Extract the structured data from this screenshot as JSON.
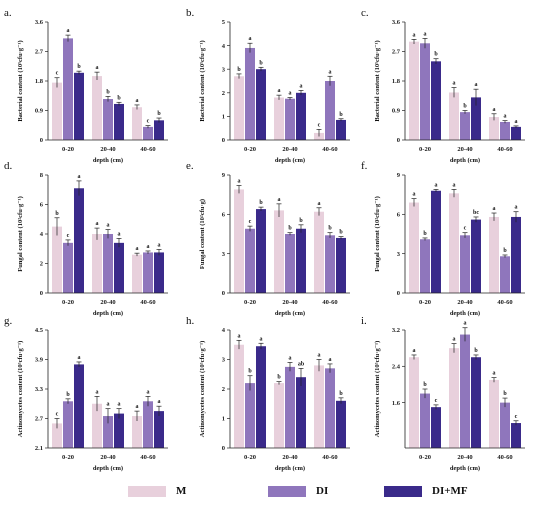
{
  "colors": {
    "M": "#e8d0dc",
    "DI": "#8f76bc",
    "DI+MF": "#3a2a8a"
  },
  "legend": [
    {
      "key": "M",
      "label": "M"
    },
    {
      "key": "DI",
      "label": "DI"
    },
    {
      "key": "DI+MF",
      "label": "DI+MF"
    }
  ],
  "chart_data": [
    {
      "panel": "a.",
      "type": "bar",
      "categories": [
        "0-20",
        "20-40",
        "40-60"
      ],
      "xlabel": "depth (cm)",
      "ylabel": "Bacterial content (10⁵cfu·g⁻¹)",
      "ylim": [
        0,
        3.6
      ],
      "yticks": [
        0,
        0.9,
        1.8,
        2.7,
        3.6
      ],
      "series": [
        {
          "name": "M",
          "values": [
            1.75,
            1.95,
            1.0
          ],
          "err": [
            0.15,
            0.12,
            0.07
          ],
          "sig": [
            "c",
            "a",
            "a"
          ]
        },
        {
          "name": "DI",
          "values": [
            3.1,
            1.25,
            0.4
          ],
          "err": [
            0.1,
            0.08,
            0.04
          ],
          "sig": [
            "a",
            "b",
            "c"
          ]
        },
        {
          "name": "DI+MF",
          "values": [
            2.05,
            1.1,
            0.6
          ],
          "err": [
            0.05,
            0.05,
            0.07
          ],
          "sig": [
            "b",
            "b",
            "b"
          ]
        }
      ]
    },
    {
      "panel": "b.",
      "type": "bar",
      "categories": [
        "0-20",
        "20-40",
        "40-60"
      ],
      "xlabel": "depth (cm)",
      "ylabel": "Bacterial content (10⁵cfu·g⁻¹)",
      "ylim": [
        0,
        5
      ],
      "yticks": [
        0,
        1,
        2,
        3,
        4,
        5
      ],
      "series": [
        {
          "name": "M",
          "values": [
            2.7,
            1.8,
            0.3
          ],
          "err": [
            0.1,
            0.1,
            0.15
          ],
          "sig": [
            "b",
            "a",
            "c"
          ]
        },
        {
          "name": "DI",
          "values": [
            3.9,
            1.75,
            2.5
          ],
          "err": [
            0.2,
            0.05,
            0.2
          ],
          "sig": [
            "a",
            "a",
            "a"
          ]
        },
        {
          "name": "DI+MF",
          "values": [
            3.0,
            2.0,
            0.85
          ],
          "err": [
            0.08,
            0.1,
            0.05
          ],
          "sig": [
            "b",
            "a",
            "b"
          ]
        }
      ]
    },
    {
      "panel": "c.",
      "type": "bar",
      "categories": [
        "0-20",
        "20-40",
        "40-60"
      ],
      "xlabel": "depth (cm)",
      "ylabel": "Bacterial content (10⁵cfu·g⁻¹)",
      "ylim": [
        0,
        3.6
      ],
      "yticks": [
        0,
        0.9,
        1.8,
        2.7,
        3.6
      ],
      "series": [
        {
          "name": "M",
          "values": [
            3.0,
            1.45,
            0.7
          ],
          "err": [
            0.07,
            0.15,
            0.1
          ],
          "sig": [
            "a",
            "a",
            "a"
          ]
        },
        {
          "name": "DI",
          "values": [
            2.95,
            0.85,
            0.55
          ],
          "err": [
            0.15,
            0.05,
            0.04
          ],
          "sig": [
            "a",
            "b",
            "a"
          ]
        },
        {
          "name": "DI+MF",
          "values": [
            2.4,
            1.3,
            0.4
          ],
          "err": [
            0.08,
            0.25,
            0.03
          ],
          "sig": [
            "b",
            "a",
            "a"
          ]
        }
      ]
    },
    {
      "panel": "d.",
      "type": "bar",
      "categories": [
        "0-20",
        "20-40",
        "40-60"
      ],
      "xlabel": "depth (cm)",
      "ylabel": "Fungal content (10²cfu·g⁻¹)",
      "ylim": [
        0,
        8
      ],
      "yticks": [
        0,
        2,
        4,
        6,
        8
      ],
      "series": [
        {
          "name": "M",
          "values": [
            4.5,
            4.0,
            2.6
          ],
          "err": [
            0.6,
            0.4,
            0.1
          ],
          "sig": [
            "b",
            "a",
            "a"
          ]
        },
        {
          "name": "DI",
          "values": [
            3.4,
            4.0,
            2.75
          ],
          "err": [
            0.2,
            0.3,
            0.1
          ],
          "sig": [
            "c",
            "a",
            "a"
          ]
        },
        {
          "name": "DI+MF",
          "values": [
            7.1,
            3.4,
            2.75
          ],
          "err": [
            0.5,
            0.3,
            0.2
          ],
          "sig": [
            "a",
            "a",
            "a"
          ]
        }
      ]
    },
    {
      "panel": "e.",
      "type": "bar",
      "categories": [
        "0-20",
        "20-40",
        "40-60"
      ],
      "xlabel": "depth (cm)",
      "ylabel": "Fungal content (10²cfu·g)",
      "ylim": [
        0,
        9
      ],
      "yticks": [
        0,
        3,
        6,
        9
      ],
      "series": [
        {
          "name": "M",
          "values": [
            7.9,
            6.3,
            6.2
          ],
          "err": [
            0.3,
            0.5,
            0.3
          ],
          "sig": [
            "a",
            "a",
            "a"
          ]
        },
        {
          "name": "DI",
          "values": [
            4.9,
            4.5,
            4.4
          ],
          "err": [
            0.2,
            0.1,
            0.2
          ],
          "sig": [
            "c",
            "b",
            "b"
          ]
        },
        {
          "name": "DI+MF",
          "values": [
            6.4,
            4.9,
            4.2
          ],
          "err": [
            0.15,
            0.3,
            0.1
          ],
          "sig": [
            "b",
            "b",
            "b"
          ]
        }
      ]
    },
    {
      "panel": "f.",
      "type": "bar",
      "categories": [
        "0-20",
        "20-40",
        "40-60"
      ],
      "xlabel": "depth (cm)",
      "ylabel": "Fungal content (10²cfu·g⁻¹)",
      "ylim": [
        0,
        9
      ],
      "yticks": [
        0,
        3,
        6,
        9
      ],
      "series": [
        {
          "name": "M",
          "values": [
            6.9,
            7.6,
            5.8
          ],
          "err": [
            0.3,
            0.3,
            0.3
          ],
          "sig": [
            "a",
            "a",
            "a"
          ]
        },
        {
          "name": "DI",
          "values": [
            4.1,
            4.4,
            2.8
          ],
          "err": [
            0.1,
            0.2,
            0.1
          ],
          "sig": [
            "b",
            "c",
            "b"
          ]
        },
        {
          "name": "DI+MF",
          "values": [
            7.8,
            5.6,
            5.8
          ],
          "err": [
            0.1,
            0.2,
            0.4
          ],
          "sig": [
            "a",
            "bc",
            "a"
          ]
        }
      ]
    },
    {
      "panel": "g.",
      "type": "bar",
      "categories": [
        "0-20",
        "20-40",
        "40-60"
      ],
      "xlabel": "depth (cm)",
      "ylabel": "Actinomycetes content (10⁵cfu·g⁻¹)",
      "ylim": [
        2.1,
        4.5
      ],
      "yticks": [
        2.1,
        2.7,
        3.3,
        3.9,
        4.5
      ],
      "series": [
        {
          "name": "M",
          "values": [
            2.6,
            3.0,
            2.75
          ],
          "err": [
            0.1,
            0.15,
            0.1
          ],
          "sig": [
            "c",
            "a",
            "a"
          ]
        },
        {
          "name": "DI",
          "values": [
            3.05,
            2.75,
            3.05
          ],
          "err": [
            0.05,
            0.15,
            0.1
          ],
          "sig": [
            "b",
            "a",
            "a"
          ]
        },
        {
          "name": "DI+MF",
          "values": [
            3.8,
            2.8,
            2.85
          ],
          "err": [
            0.05,
            0.1,
            0.1
          ],
          "sig": [
            "a",
            "a",
            "a"
          ]
        }
      ]
    },
    {
      "panel": "h.",
      "type": "bar",
      "categories": [
        "0-20",
        "20-40",
        "40-60"
      ],
      "xlabel": "depth (cm)",
      "ylabel": "Actinomycetes content (10⁵cfu·g⁻¹)",
      "ylim": [
        0,
        4
      ],
      "yticks": [
        0,
        1,
        2,
        3,
        4
      ],
      "series": [
        {
          "name": "M",
          "values": [
            3.5,
            2.2,
            2.8
          ],
          "err": [
            0.15,
            0.05,
            0.2
          ],
          "sig": [
            "a",
            "b",
            "a"
          ]
        },
        {
          "name": "DI",
          "values": [
            2.2,
            2.75,
            2.7
          ],
          "err": [
            0.25,
            0.15,
            0.15
          ],
          "sig": [
            "b",
            "a",
            "a"
          ]
        },
        {
          "name": "DI+MF",
          "values": [
            3.45,
            2.4,
            1.6
          ],
          "err": [
            0.1,
            0.3,
            0.1
          ],
          "sig": [
            "a",
            "ab",
            "b"
          ]
        }
      ]
    },
    {
      "panel": "i.",
      "type": "bar",
      "categories": [
        "0-20",
        "20-40",
        "40-60"
      ],
      "xlabel": "depth (cm)",
      "ylabel": "Actinomycetes content (10⁵cfu·g⁻¹)",
      "ylim": [
        0.6,
        3.2
      ],
      "yticks": [
        1.6,
        2.4,
        3.2
      ],
      "series": [
        {
          "name": "M",
          "values": [
            2.6,
            2.8,
            2.1
          ],
          "err": [
            0.05,
            0.1,
            0.05
          ],
          "sig": [
            "a",
            "a",
            "a"
          ]
        },
        {
          "name": "DI",
          "values": [
            1.8,
            3.1,
            1.6
          ],
          "err": [
            0.1,
            0.15,
            0.1
          ],
          "sig": [
            "b",
            "a",
            "b"
          ]
        },
        {
          "name": "DI+MF",
          "values": [
            1.5,
            2.6,
            1.15
          ],
          "err": [
            0.05,
            0.05,
            0.05
          ],
          "sig": [
            "c",
            "b",
            "c"
          ]
        }
      ]
    }
  ]
}
